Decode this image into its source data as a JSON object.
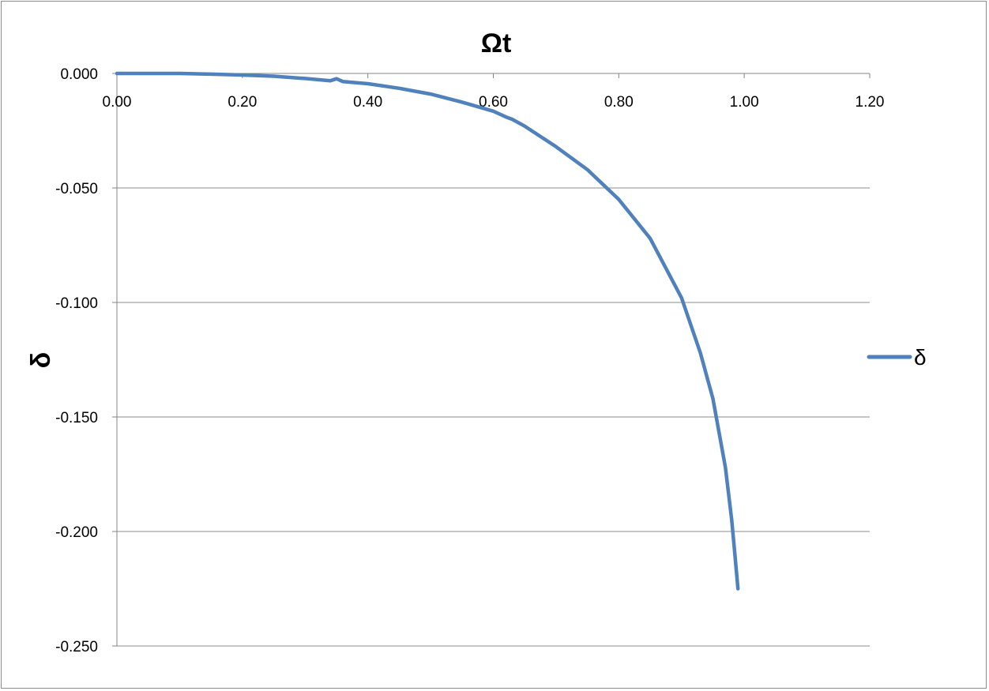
{
  "chart_data": {
    "type": "line",
    "xlabel": "Ωt",
    "ylabel": "δ",
    "xlim": [
      0.0,
      1.2
    ],
    "ylim": [
      -0.25,
      0.0
    ],
    "x_ticks": [
      "0.00",
      "0.20",
      "0.40",
      "0.60",
      "0.80",
      "1.00",
      "1.20"
    ],
    "x_tick_values": [
      0.0,
      0.2,
      0.4,
      0.6,
      0.8,
      1.0,
      1.2
    ],
    "y_ticks": [
      "0.000",
      "-0.050",
      "-0.100",
      "-0.150",
      "-0.200",
      "-0.250"
    ],
    "y_tick_values": [
      0.0,
      -0.05,
      -0.1,
      -0.15,
      -0.2,
      -0.25
    ],
    "x_axis_position": "top",
    "grid": "horizontal",
    "legend": "right",
    "series": [
      {
        "name": "δ",
        "color": "#4f81bd",
        "x": [
          0.0,
          0.05,
          0.1,
          0.15,
          0.2,
          0.25,
          0.3,
          0.34,
          0.35,
          0.36,
          0.4,
          0.45,
          0.5,
          0.55,
          0.6,
          0.62,
          0.63,
          0.65,
          0.7,
          0.75,
          0.8,
          0.85,
          0.9,
          0.93,
          0.95,
          0.97,
          0.98,
          0.985,
          0.99
        ],
        "y": [
          0.0,
          0.0,
          0.0,
          -0.0003,
          -0.0007,
          -0.0012,
          -0.0022,
          -0.0032,
          -0.0023,
          -0.0035,
          -0.0045,
          -0.0065,
          -0.009,
          -0.0125,
          -0.0165,
          -0.019,
          -0.02,
          -0.023,
          -0.032,
          -0.042,
          -0.055,
          -0.072,
          -0.098,
          -0.122,
          -0.142,
          -0.172,
          -0.195,
          -0.21,
          -0.225
        ]
      }
    ]
  }
}
